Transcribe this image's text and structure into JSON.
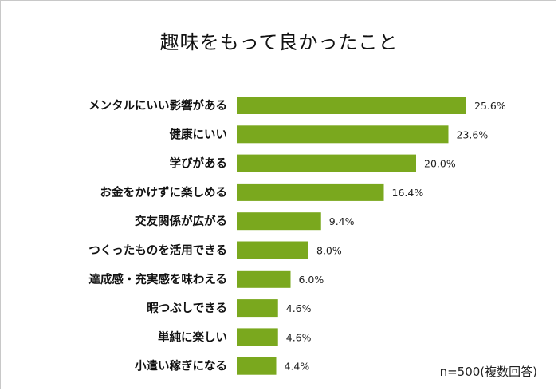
{
  "title": "趣味をもって良かったこと",
  "note": "n=500(複数回答)",
  "colors": {
    "bar": "#7aa81e",
    "label": "#111111",
    "value": "#222222"
  },
  "chart_data": {
    "type": "bar",
    "orientation": "horizontal",
    "title": "趣味をもって良かったこと",
    "categories": [
      "メンタルにいい影響がある",
      "健康にいい",
      "学びがある",
      "お金をかけずに楽しめる",
      "交友関係が広がる",
      "つくったものを活用できる",
      "達成感・充実感を味わえる",
      "暇つぶしできる",
      "単純に楽しい",
      "小遣い稼ぎになる"
    ],
    "values": [
      25.6,
      23.6,
      20.0,
      16.4,
      9.4,
      8.0,
      6.0,
      4.6,
      4.6,
      4.4
    ],
    "value_labels": [
      "25.6%",
      "23.6%",
      "20.0%",
      "16.4%",
      "9.4%",
      "8.0%",
      "6.0%",
      "4.6%",
      "4.6%",
      "4.4%"
    ],
    "unit": "%",
    "grid": false,
    "legend": "none"
  }
}
